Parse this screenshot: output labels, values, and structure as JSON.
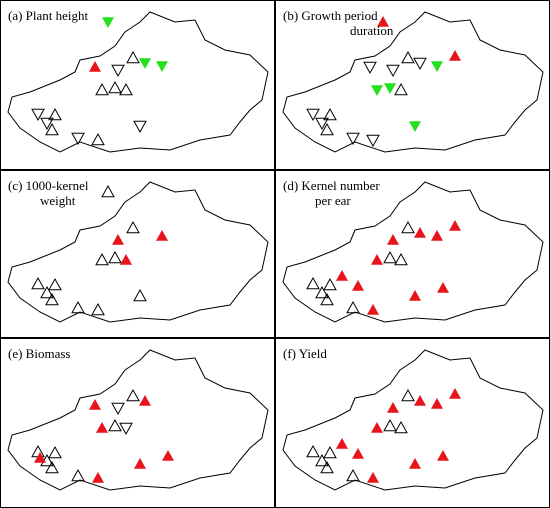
{
  "panels": [
    {
      "label": [
        "(a) Plant height"
      ]
    },
    {
      "label": [
        "(b) Growth period",
        "duration"
      ]
    },
    {
      "label": [
        "(c) 1000-kernel",
        "weight"
      ]
    },
    {
      "label": [
        "(d) Kernel number",
        "per ear"
      ]
    },
    {
      "label": [
        "(e) Biomass"
      ]
    },
    {
      "label": [
        "(f) Yield"
      ]
    }
  ]
}
